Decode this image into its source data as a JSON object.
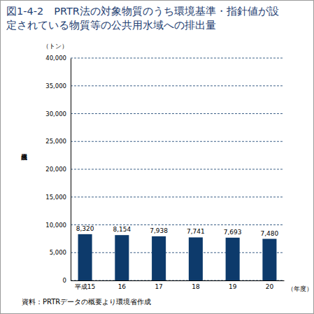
{
  "chart_data": {
    "type": "bar",
    "title": "図1-4-2　PRTR法の対象物質のうち環境基準・指針値が設定されている物質等の公共用水域への排出量",
    "unit": "（トン）",
    "y_label": "公共用水域",
    "x_label": "（年度）",
    "source": "資料：PRTRデータの概要より環境省作成",
    "categories": [
      "平成15",
      "16",
      "17",
      "18",
      "19",
      "20"
    ],
    "values": [
      8320,
      8154,
      7938,
      7741,
      7693,
      7480
    ],
    "value_labels": [
      "8,320",
      "8,154",
      "7,938",
      "7,741",
      "7,693",
      "7,480"
    ],
    "color": "#0d3a6b",
    "ylim": [
      0,
      40000
    ],
    "yticks": [
      0,
      {
        "value": 5000,
        "label": "5,000"
      },
      {
        "value": 10000,
        "label": "10,000"
      },
      {
        "value": 15000,
        "label": "15,000"
      },
      {
        "value": 20000,
        "label": "20,000"
      },
      {
        "value": 25000,
        "label": "25,000"
      },
      {
        "value": 30000,
        "label": "30,000"
      },
      {
        "value": 35000,
        "label": "35,000"
      },
      {
        "value": 40000,
        "label": "40,000"
      }
    ],
    "grid": true,
    "data_labels": true
  }
}
